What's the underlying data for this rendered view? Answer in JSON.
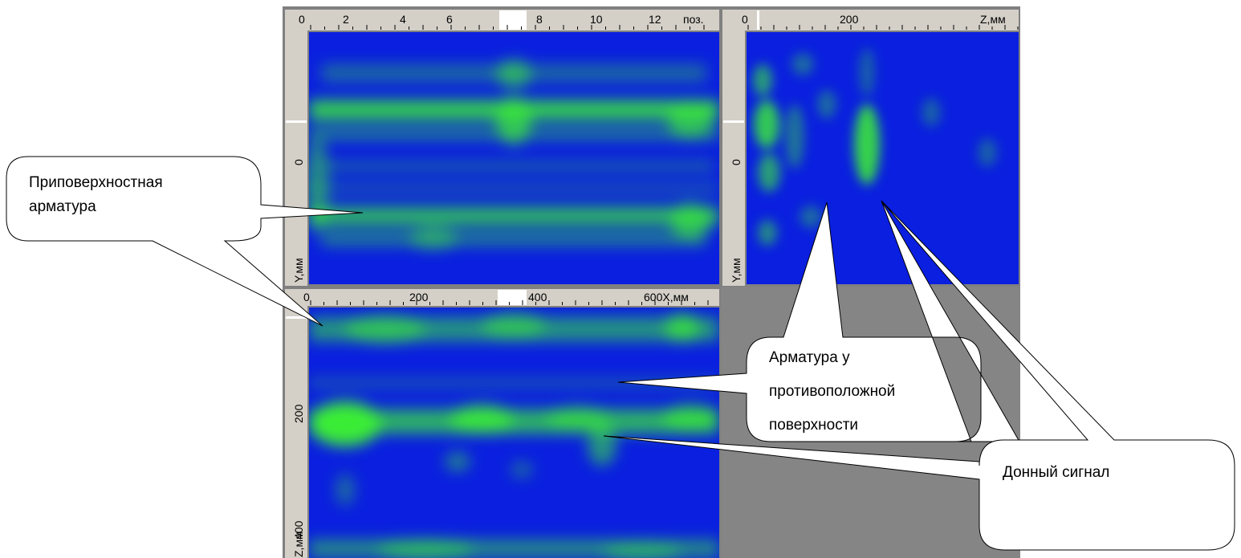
{
  "scans": {
    "top_left": {
      "x_ticks": [
        "0",
        "2",
        "4",
        "6",
        "8",
        "10",
        "12"
      ],
      "x_unit": "поз.",
      "y_ticks": [
        "0"
      ],
      "y_label": "Y,мм"
    },
    "top_right": {
      "x_ticks": [
        "0",
        "200"
      ],
      "x_unit": "Z,мм",
      "y_ticks": [
        "0"
      ],
      "y_label": "Y,мм"
    },
    "bottom": {
      "x_ticks": [
        "0",
        "200",
        "400"
      ],
      "x_unit": "600X,мм",
      "y_ticks": [
        "200",
        "400"
      ],
      "y_label": "Z,мм"
    },
    "colors": {
      "frame": "#808080",
      "background": "#0a1fe0",
      "signal": "#3cf033",
      "empty": "#858585"
    }
  },
  "callouts": {
    "near_surface": [
      "Приповерхностная",
      "арматура"
    ],
    "opposite_surface": [
      "Арматура у",
      "противоположной",
      "поверхности"
    ],
    "back_signal": [
      "Донный сигнал"
    ]
  }
}
